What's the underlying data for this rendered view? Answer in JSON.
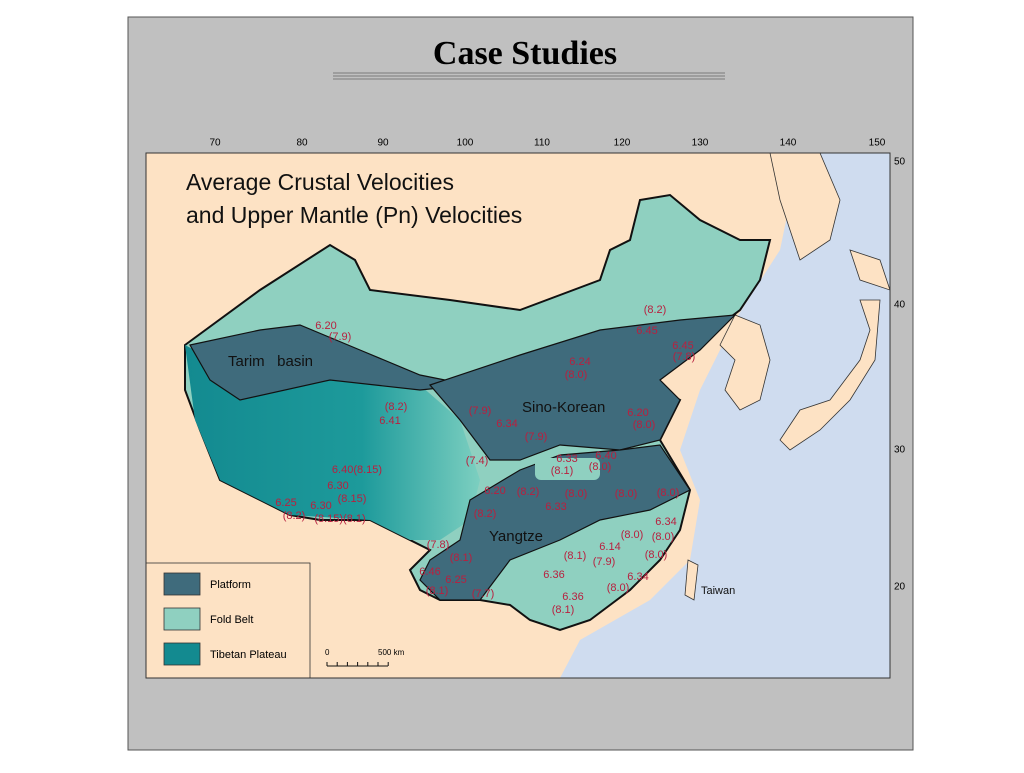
{
  "title": "Case Studies",
  "map": {
    "title_lines": [
      "Average Crustal Velocities",
      "and Upper Mantle (Pn) Velocities"
    ],
    "lon_ticks": [
      70,
      80,
      90,
      100,
      110,
      120,
      130,
      140,
      150
    ],
    "lat_ticks": [
      50,
      40,
      30,
      20
    ],
    "regions": [
      "Tarim   basin",
      "Sino-Korean",
      "Yangtze",
      "Taiwan"
    ],
    "velocity_labels": [
      "6.20",
      "(7.9)",
      "(8.2)",
      "6.45",
      "6.45",
      "(7.8)",
      "6.24",
      "(8.0)",
      "(8.2)",
      "6.41",
      "(7.9)",
      "6.34",
      "(7.9)",
      "6.20",
      "(8.0)",
      "(7.4)",
      "6.33",
      "(8.1)",
      "6.40",
      "(8.0)",
      "6.40(8.15)",
      "6.30",
      "(8.15)",
      "6.25",
      "6.30",
      "(8.2)",
      "(8.15)(8.1)",
      "6.20",
      "(8.2)",
      "(8.0)",
      "(8.0)",
      "(8.0)",
      "6.33",
      "(8.2)",
      "6.34",
      "(8.0)",
      "(8.0)",
      "(7.8)",
      "(8.1)",
      "6.14",
      "(8.1)",
      "(7.9)",
      "(8.0)",
      "6.46",
      "6.25",
      "6.36",
      "6.34",
      "(8.1)",
      "(7.7)",
      "(8.0)",
      "6.36",
      "(8.1)"
    ],
    "legend": [
      "Platform",
      "Fold Belt",
      "Tibetan Plateau"
    ],
    "scale": {
      "start": "0",
      "end": "500 km"
    }
  }
}
